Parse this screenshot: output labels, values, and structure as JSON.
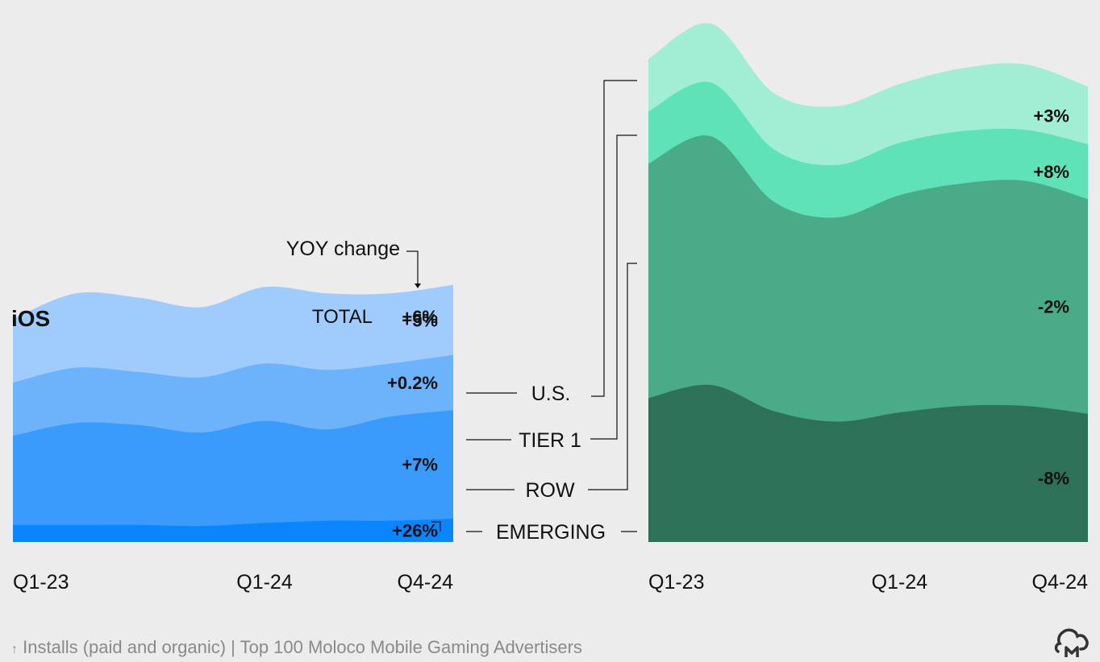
{
  "footer": {
    "arrow": "↑",
    "text": "Installs (paid and organic) | Top 100 Moloco Mobile Gaming Advertisers"
  },
  "logo": {
    "icon": "moloco-cm-logo-icon"
  },
  "platform_label": "iOS",
  "yoy_label": "YOY change",
  "total": {
    "label": "TOTAL",
    "value": "+6%"
  },
  "segment_labels": [
    "U.S.",
    "TIER 1",
    "ROW",
    "EMERGING"
  ],
  "colors": {
    "ios": [
      "#0a84ff",
      "#3a9bfa",
      "#6db3fb",
      "#9fccfc"
    ],
    "android": [
      "#2e7159",
      "#4aab89",
      "#5fe2b8",
      "#a1eed4"
    ]
  },
  "chart_data": [
    {
      "type": "area",
      "stacked": true,
      "title": "iOS",
      "x_ticks": [
        "Q1-23",
        "Q1-24",
        "Q4-24"
      ],
      "x": [
        "Q1-23",
        "Q2-23",
        "Q3-23",
        "Q4-23",
        "Q1-24",
        "Q2-24",
        "Q3-24",
        "Q4-24"
      ],
      "ylim": [
        0,
        130
      ],
      "series": [
        {
          "name": "EMERGING",
          "yoy": "+26%",
          "values": [
            8,
            8,
            8,
            7.5,
            9,
            10,
            10,
            11
          ]
        },
        {
          "name": "ROW",
          "yoy": "+7%",
          "values": [
            42,
            48,
            47,
            44,
            48,
            43,
            49,
            51
          ]
        },
        {
          "name": "TIER 1",
          "yoy": "+0.2%",
          "values": [
            25,
            26,
            25,
            26,
            27,
            28,
            25,
            26
          ]
        },
        {
          "name": "U.S.",
          "yoy": "+5%",
          "values": [
            30,
            35,
            35,
            33,
            36,
            36,
            33,
            33
          ]
        }
      ]
    },
    {
      "type": "area",
      "stacked": true,
      "title": "",
      "x_ticks": [
        "Q1-23",
        "Q1-24",
        "Q4-24"
      ],
      "x": [
        "Q1-23",
        "Q2-23",
        "Q3-23",
        "Q4-23",
        "Q1-24",
        "Q2-24",
        "Q3-24",
        "Q4-24"
      ],
      "ylim": [
        0,
        400
      ],
      "series": [
        {
          "name": "EMERGING",
          "yoy": "",
          "values": [
            0,
            0,
            0,
            0,
            0,
            0,
            0,
            0
          ]
        },
        {
          "name": "ROW",
          "yoy": "-8%",
          "values": [
            110,
            120,
            100,
            92,
            99,
            104,
            104,
            98
          ]
        },
        {
          "name": "TIER 1",
          "yoy": "-2%",
          "values": [
            179,
            190,
            160,
            156,
            166,
            170,
            172,
            164
          ]
        },
        {
          "name": "U.S.",
          "yoy": "+8%",
          "values": [
            40,
            41,
            40,
            40,
            40,
            40,
            39,
            42
          ]
        },
        {
          "name": "",
          "yoy": "+3%",
          "values": [
            40,
            45,
            43,
            45,
            45,
            48,
            50,
            44
          ]
        }
      ]
    }
  ]
}
